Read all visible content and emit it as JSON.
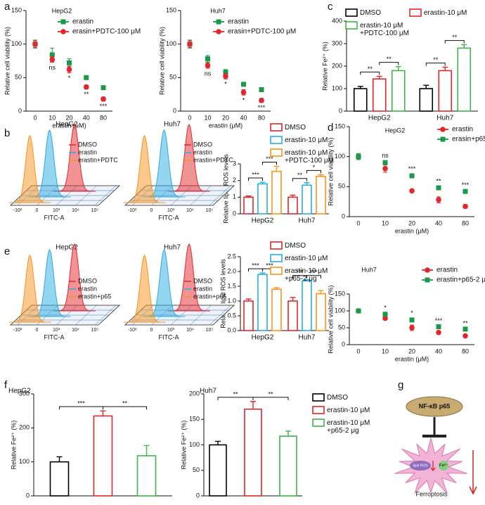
{
  "panel_labels": [
    "a",
    "b",
    "c",
    "d",
    "e",
    "f",
    "g"
  ],
  "chart_data": [
    {
      "type": "line",
      "title": "HepG2",
      "categories": [
        "0",
        "10",
        "20",
        "40",
        "80"
      ],
      "xlabel": "erastin (μM)",
      "ylabel": "Relative cell viability (%)",
      "ylim": [
        0,
        150
      ],
      "yticks": [
        0,
        50,
        100,
        150
      ],
      "series": [
        {
          "name": "erastin",
          "color": "#1a9a48",
          "marker": "square",
          "values": [
            100,
            84,
            72,
            50,
            35
          ],
          "errors": [
            6,
            10,
            6,
            2,
            2
          ]
        },
        {
          "name": "erasin+PDTC-100 μM",
          "color": "#e3262b",
          "marker": "circle",
          "values": [
            100,
            77,
            62,
            36,
            18
          ],
          "errors": [
            5,
            4,
            5,
            3,
            3
          ]
        }
      ],
      "annotations": [
        null,
        "ns",
        "*",
        "**",
        "***"
      ]
    },
    {
      "type": "line",
      "title": "Huh7",
      "categories": [
        "0",
        "10",
        "20",
        "40",
        "80"
      ],
      "xlabel": "erastin (μM)",
      "ylabel": "Relative cell viability (%)",
      "ylim": [
        0,
        150
      ],
      "yticks": [
        0,
        50,
        100,
        150
      ],
      "series": [
        {
          "name": "erastin",
          "color": "#1a9a48",
          "marker": "square",
          "values": [
            100,
            78,
            58,
            40,
            32
          ],
          "errors": [
            6,
            5,
            4,
            2,
            2
          ]
        },
        {
          "name": "erasin+PDTC-100 μM",
          "color": "#e3262b",
          "marker": "circle",
          "values": [
            100,
            68,
            52,
            28,
            16
          ],
          "errors": [
            5,
            4,
            4,
            4,
            3
          ]
        }
      ],
      "annotations": [
        null,
        "ns",
        "*",
        "*",
        "***"
      ]
    },
    {
      "type": "bar",
      "categories": [
        "HepG2",
        "Huh7"
      ],
      "ylabel": "Relative Fe²⁺ (%)",
      "ylim": [
        0,
        400
      ],
      "yticks": [
        0,
        100,
        200,
        300,
        400
      ],
      "series": [
        {
          "name": "DMSO",
          "color": "#000000",
          "values": [
            100,
            100
          ],
          "errors": [
            10,
            15
          ]
        },
        {
          "name": "erastin-10 μM",
          "color": "#e3262b",
          "values": [
            143,
            180
          ],
          "errors": [
            12,
            15
          ]
        },
        {
          "name": "erastin-10 μM\n+PDTC-100 μM",
          "color": "#3cb54a",
          "values": [
            180,
            280
          ],
          "errors": [
            18,
            15
          ]
        }
      ],
      "significance": [
        [
          "**",
          "**"
        ],
        [
          "**",
          "**"
        ]
      ]
    },
    {
      "type": "bar",
      "categories": [
        "HepG2",
        "Huh7"
      ],
      "ylabel": "Relative lipid ROS levels",
      "ylim": [
        0,
        3
      ],
      "yticks": [
        0,
        1,
        2,
        3
      ],
      "series": [
        {
          "name": "DMSO",
          "color": "#e3262b",
          "values": [
            1.0,
            1.0
          ],
          "errors": [
            0.07,
            0.12
          ]
        },
        {
          "name": "erastin-10 μM",
          "color": "#29abe2",
          "values": [
            1.8,
            1.72
          ],
          "errors": [
            0.1,
            0.15
          ]
        },
        {
          "name": "erastin-10 μM\n+PDTC-100 μM",
          "color": "#f7941d",
          "values": [
            2.55,
            2.25
          ],
          "errors": [
            0.3,
            0.1
          ]
        }
      ],
      "significance": [
        [
          "***",
          "***"
        ],
        [
          "**",
          "*"
        ]
      ]
    },
    {
      "type": "line",
      "title": "HepG2",
      "categories": [
        "0",
        "10",
        "20",
        "40",
        "80"
      ],
      "xlabel": "erastin (μM)",
      "ylabel": "Relative cell viability (%)",
      "ylim": [
        0,
        150
      ],
      "yticks": [
        0,
        50,
        100,
        150
      ],
      "series": [
        {
          "name": "erastin",
          "color": "#e3262b",
          "marker": "circle",
          "values": [
            100,
            80,
            43,
            28,
            17
          ],
          "errors": [
            5,
            6,
            2,
            5,
            3
          ]
        },
        {
          "name": "erasin+p65-2 μg",
          "color": "#1a9a48",
          "marker": "square",
          "values": [
            100,
            90,
            68,
            48,
            42
          ],
          "errors": [
            5,
            3,
            3,
            2,
            2
          ]
        }
      ],
      "annotations": [
        null,
        "ns",
        "***",
        "**",
        "***"
      ]
    },
    {
      "type": "bar",
      "categories": [
        "HepG2",
        "Huh7"
      ],
      "ylabel": "Relative lipid ROS levels",
      "ylim": [
        0,
        2.5
      ],
      "yticks": [
        {
          "value": 0,
          "label": "0.0"
        },
        0.5,
        {
          "value": 1,
          "label": "1.0"
        },
        1.5,
        {
          "value": 2,
          "label": "2.0"
        },
        2.5
      ],
      "series": [
        {
          "name": "DMSO",
          "color": "#e3262b",
          "values": [
            1.0,
            1.0
          ],
          "errors": [
            0.07,
            0.12
          ]
        },
        {
          "name": "erastin-10 μM",
          "color": "#29abe2",
          "values": [
            1.9,
            1.68
          ],
          "errors": [
            0.05,
            0.04
          ]
        },
        {
          "name": "erastin-10 μM\n+p65-2 μg",
          "color": "#f7941d",
          "values": [
            1.4,
            1.25
          ],
          "errors": [
            0.05,
            0.1
          ]
        }
      ],
      "significance": [
        [
          "***",
          "***"
        ],
        [
          "***",
          "***"
        ]
      ]
    },
    {
      "type": "line",
      "title": "Huh7",
      "categories": [
        "0",
        "10",
        "20",
        "40",
        "80"
      ],
      "xlabel": "erastin (μM)",
      "ylabel": "Relative cell viability (%)",
      "ylim": [
        0,
        150
      ],
      "yticks": [
        0,
        50,
        100,
        150
      ],
      "series": [
        {
          "name": "erastin",
          "color": "#e3262b",
          "marker": "circle",
          "values": [
            100,
            78,
            50,
            36,
            26
          ],
          "errors": [
            3,
            3,
            8,
            2,
            4
          ]
        },
        {
          "name": "erastin+p65-2 μg",
          "color": "#1a9a48",
          "marker": "square",
          "values": [
            100,
            90,
            73,
            53,
            46
          ],
          "errors": [
            3,
            4,
            5,
            2,
            2
          ]
        }
      ],
      "annotations": [
        null,
        "*",
        "*",
        "***",
        "**"
      ]
    },
    {
      "type": "bar",
      "title": "HepG2",
      "categories": [
        null
      ],
      "ylabel": "Relative Fe²⁺ (%)",
      "ylim": [
        0,
        300
      ],
      "yticks": [
        0,
        100,
        200,
        300
      ],
      "series": [
        {
          "color": "#000000",
          "values": [
            100
          ],
          "errors": [
            15
          ]
        },
        {
          "color": "#e3262b",
          "values": [
            235
          ],
          "errors": [
            15
          ]
        },
        {
          "color": "#3cb54a",
          "values": [
            118
          ],
          "errors": [
            30
          ]
        }
      ],
      "significance": [
        [
          "***",
          "**"
        ]
      ]
    },
    {
      "type": "bar",
      "title": "Huh7",
      "categories": [
        null
      ],
      "ylabel": "Relative Fe²⁺ (%)",
      "ylim": [
        0,
        200
      ],
      "yticks": [
        0,
        50,
        100,
        150,
        200
      ],
      "series": [
        {
          "name": "DMSO",
          "color": "#000000",
          "values": [
            100
          ],
          "errors": [
            7
          ]
        },
        {
          "name": "erastin-10 μM",
          "color": "#e3262b",
          "values": [
            170
          ],
          "errors": [
            15
          ]
        },
        {
          "name": "erastin-10 μM\n+p65-2 μg",
          "color": "#3cb54a",
          "values": [
            117
          ],
          "errors": [
            10
          ]
        }
      ],
      "significance": [
        [
          "**",
          "**"
        ]
      ]
    }
  ],
  "flow_histograms": [
    {
      "title": "HepG2",
      "legend": [
        "DMSO",
        "erastin",
        "erastin+PDTC"
      ],
      "colors": [
        "#e3262b",
        "#29abe2",
        "#f7941d"
      ],
      "xticks": [
        "-10³",
        "0",
        "10³",
        "10⁴",
        "10⁵"
      ],
      "xlabel": "FITC-A"
    },
    {
      "title": "Huh7",
      "legend": [
        "DMSO",
        "erastin",
        "erastin+PDTC"
      ],
      "colors": [
        "#e3262b",
        "#29abe2",
        "#f7941d"
      ],
      "xticks": [
        "-10³",
        "0",
        "10³",
        "10⁴",
        "10⁵"
      ],
      "xlabel": "FITC-A"
    },
    {
      "title": "HepG2",
      "legend": [
        "DMSO",
        "erastin",
        "erastin+p65"
      ],
      "colors": [
        "#e3262b",
        "#29abe2",
        "#f7941d"
      ],
      "xticks": [
        "-10³",
        "0",
        "10³",
        "10⁴",
        "10⁵"
      ],
      "xlabel": "FITC-A"
    },
    {
      "title": "Huh7",
      "legend": [
        "DMSO",
        "erastin",
        "erastin+p65"
      ],
      "colors": [
        "#e3262b",
        "#29abe2",
        "#f7941d"
      ],
      "xticks": [
        "-10³",
        "0",
        "10³",
        "10⁴",
        "10⁵"
      ],
      "xlabel": "FITC-A"
    }
  ],
  "diagram": {
    "protein": "NF-κB p65",
    "outcome": "Ferroptosis",
    "lipid_ros": "lipid ROS",
    "iron": "Fe²⁺"
  }
}
